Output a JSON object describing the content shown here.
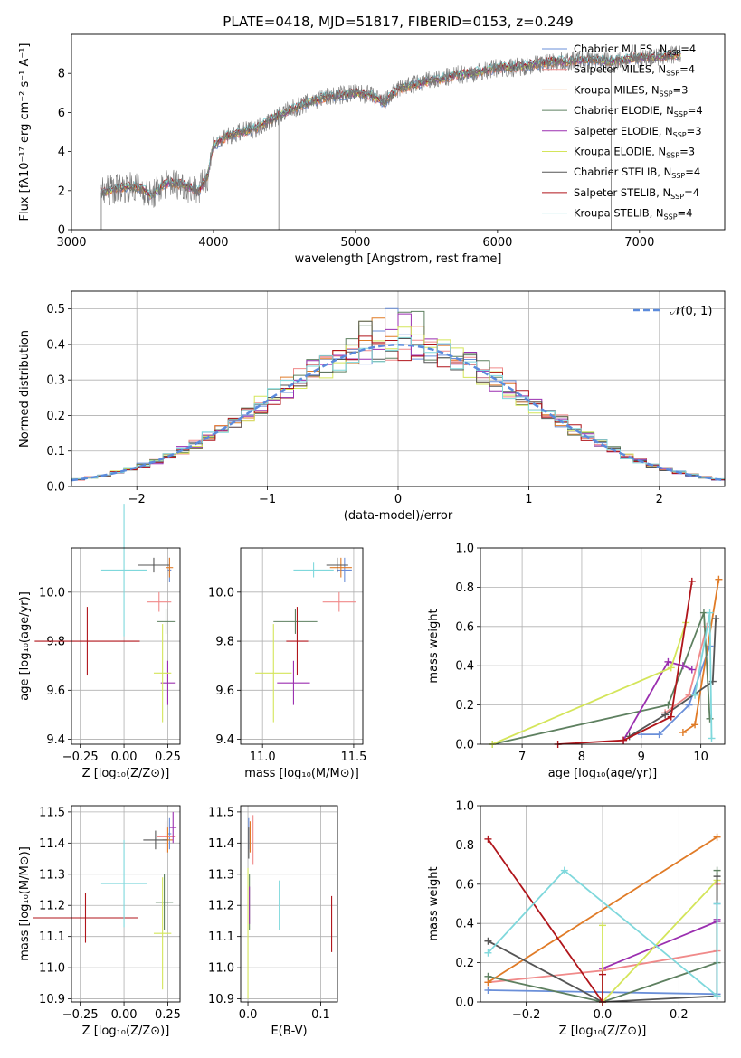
{
  "colors": {
    "chabrier_miles": "#6a8fd9",
    "salpeter_miles": "#f08a8a",
    "kroupa_miles": "#e07b27",
    "chabrier_elodie": "#5e8060",
    "salpeter_elodie": "#9b2fb0",
    "kroupa_elodie": "#d4e55a",
    "chabrier_stelib": "#555555",
    "salpeter_stelib": "#b0151b",
    "kroupa_stelib": "#7fd8dc",
    "gaussian": "#5b8bdc",
    "grid": "#b0b0b0"
  },
  "chart_data": [
    {
      "id": "spectrum",
      "type": "line",
      "title": "PLATE=0418, MJD=51817, FIBERID=0153, z=0.249",
      "xlabel": "wavelength [Angstrom, rest frame]",
      "ylabel_html": "Flux [fλ10⁻¹⁷ erg cm⁻² s⁻¹ A⁻¹]",
      "xlim": [
        3000,
        7600
      ],
      "ylim": [
        0,
        10
      ],
      "xticks": [
        3000,
        4000,
        5000,
        6000,
        7000
      ],
      "yticks": [
        0,
        2,
        4,
        6,
        8
      ],
      "grid": false,
      "legend": [
        {
          "label": "Chabrier MILES, N",
          "sub": "SSP",
          "tail": "=4",
          "color": "chabrier_miles"
        },
        {
          "label": "Salpeter MILES, N",
          "sub": "SSP",
          "tail": "=4",
          "color": "salpeter_miles"
        },
        {
          "label": "Kroupa MILES, N",
          "sub": "SSP",
          "tail": "=3",
          "color": "kroupa_miles"
        },
        {
          "label": "Chabrier ELODIE, N",
          "sub": "SSP",
          "tail": "=4",
          "color": "chabrier_elodie"
        },
        {
          "label": "Salpeter ELODIE, N",
          "sub": "SSP",
          "tail": "=3",
          "color": "salpeter_elodie"
        },
        {
          "label": "Kroupa ELODIE, N",
          "sub": "SSP",
          "tail": "=3",
          "color": "kroupa_elodie"
        },
        {
          "label": "Chabrier STELIB, N",
          "sub": "SSP",
          "tail": "=4",
          "color": "chabrier_stelib"
        },
        {
          "label": "Salpeter STELIB, N",
          "sub": "SSP",
          "tail": "=4",
          "color": "salpeter_stelib"
        },
        {
          "label": "Kroupa STELIB, N",
          "sub": "SSP",
          "tail": "=4",
          "color": "kroupa_stelib"
        }
      ],
      "continuum": {
        "x": [
          3210,
          3300,
          3400,
          3500,
          3560,
          3650,
          3700,
          3780,
          3850,
          3900,
          3960,
          4000,
          4100,
          4200,
          4300,
          4400,
          4500,
          4600,
          4700,
          4800,
          4900,
          5000,
          5100,
          5200,
          5300,
          5400,
          5500,
          5600,
          5700,
          5800,
          5900,
          6000,
          6100,
          6200,
          6300,
          6400,
          6500,
          6600,
          6700,
          6800,
          6900,
          7000,
          7100,
          7200,
          7300
        ],
        "y": [
          1.9,
          2.1,
          2.2,
          2.1,
          1.7,
          2.3,
          2.4,
          2.3,
          2.1,
          2.0,
          2.8,
          4.3,
          4.8,
          5.0,
          5.2,
          5.6,
          6.0,
          6.3,
          6.6,
          6.8,
          6.9,
          7.0,
          6.9,
          6.5,
          7.2,
          7.4,
          7.6,
          7.7,
          7.9,
          8.0,
          8.1,
          8.3,
          8.3,
          8.4,
          8.5,
          8.6,
          8.6,
          8.7,
          8.7,
          8.6,
          8.7,
          8.8,
          8.8,
          8.9,
          9.0
        ]
      }
    },
    {
      "id": "residuals",
      "type": "histogram",
      "xlabel": "(data-model)/error",
      "ylabel": "Normed distribution",
      "xlim": [
        -2.5,
        2.5
      ],
      "ylim": [
        0,
        0.55
      ],
      "xticks": [
        -2,
        -1,
        0,
        1,
        2
      ],
      "yticks": [
        0.0,
        0.1,
        0.2,
        0.3,
        0.4,
        0.5
      ],
      "grid": true,
      "bin_width": 0.1,
      "gaussian_label": "𝒩(0, 1)",
      "legend_position": "top-right"
    },
    {
      "id": "age_vs_Z",
      "type": "errorbar",
      "xlabel": "Z [log₁₀(Z/Z⊙)]",
      "ylabel": "age  [log₁₀(age/yr)]",
      "xlim": [
        -0.3,
        0.32
      ],
      "ylim": [
        9.38,
        10.18
      ],
      "xticks": [
        -0.25,
        0.0,
        0.25
      ],
      "xticklabels": [
        "−0.25",
        "0.00",
        "0.25"
      ],
      "yticks": [
        9.4,
        9.6,
        9.8,
        10.0
      ],
      "grid": true,
      "points": [
        {
          "color": "chabrier_miles",
          "x": 0.26,
          "xerr": 0.01,
          "y": 10.09,
          "yerr": 0.05
        },
        {
          "color": "salpeter_miles",
          "x": 0.2,
          "xerr": 0.07,
          "y": 9.96,
          "yerr": 0.04
        },
        {
          "color": "kroupa_miles",
          "x": 0.26,
          "xerr": 0.02,
          "y": 10.1,
          "yerr": 0.04
        },
        {
          "color": "chabrier_elodie",
          "x": 0.24,
          "xerr": 0.05,
          "y": 9.88,
          "yerr": 0.05
        },
        {
          "color": "salpeter_elodie",
          "x": 0.25,
          "xerr": 0.04,
          "y": 9.63,
          "yerr": 0.09
        },
        {
          "color": "kroupa_elodie",
          "x": 0.22,
          "xerr": 0.05,
          "y": 9.67,
          "yerr": 0.2
        },
        {
          "color": "chabrier_stelib",
          "x": 0.17,
          "xerr": 0.09,
          "y": 10.11,
          "yerr": 0.03
        },
        {
          "color": "salpeter_stelib",
          "x": -0.21,
          "xerr": 0.3,
          "y": 9.8,
          "yerr": 0.14
        },
        {
          "color": "kroupa_stelib",
          "x": 0.0,
          "xerr": 0.13,
          "y": 10.09,
          "yerr": 0.27
        }
      ]
    },
    {
      "id": "age_vs_mass",
      "type": "errorbar",
      "xlabel": "mass [log₁₀(M/M⊙)]",
      "ylabel": "",
      "xlim": [
        10.88,
        11.55
      ],
      "ylim": [
        9.38,
        10.18
      ],
      "xticks": [
        11.0,
        11.5
      ],
      "xticklabels": [
        "11.0",
        "11.5"
      ],
      "yticks": [
        9.4,
        9.6,
        9.8,
        10.0
      ],
      "grid": true,
      "points": [
        {
          "color": "chabrier_miles",
          "x": 11.45,
          "xerr": 0.04,
          "y": 10.09,
          "yerr": 0.05
        },
        {
          "color": "salpeter_miles",
          "x": 11.42,
          "xerr": 0.09,
          "y": 9.96,
          "yerr": 0.04
        },
        {
          "color": "kroupa_miles",
          "x": 11.43,
          "xerr": 0.06,
          "y": 10.1,
          "yerr": 0.04
        },
        {
          "color": "chabrier_elodie",
          "x": 11.18,
          "xerr": 0.12,
          "y": 9.88,
          "yerr": 0.05
        },
        {
          "color": "salpeter_elodie",
          "x": 11.17,
          "xerr": 0.09,
          "y": 9.63,
          "yerr": 0.09
        },
        {
          "color": "kroupa_elodie",
          "x": 11.06,
          "xerr": 0.1,
          "y": 9.67,
          "yerr": 0.2
        },
        {
          "color": "chabrier_stelib",
          "x": 11.41,
          "xerr": 0.06,
          "y": 10.11,
          "yerr": 0.03
        },
        {
          "color": "salpeter_stelib",
          "x": 11.19,
          "xerr": 0.06,
          "y": 9.8,
          "yerr": 0.14
        },
        {
          "color": "kroupa_stelib",
          "x": 11.28,
          "xerr": 0.11,
          "y": 10.09,
          "yerr": 0.03
        }
      ]
    },
    {
      "id": "weight_vs_age",
      "type": "line",
      "xlabel": "age  [log₁₀(age/yr)]",
      "ylabel": "mass weight",
      "xlim": [
        6.3,
        10.4
      ],
      "ylim": [
        0,
        1.0
      ],
      "xticks": [
        7,
        8,
        9,
        10
      ],
      "yticks": [
        0.0,
        0.2,
        0.4,
        0.6,
        0.8,
        1.0
      ],
      "grid": true,
      "series": [
        {
          "color": "chabrier_miles",
          "x": [
            9.0,
            9.3,
            9.8,
            10.15
          ],
          "y": [
            0.05,
            0.05,
            0.2,
            0.5
          ]
        },
        {
          "color": "salpeter_miles",
          "x": [
            9.4,
            9.8,
            10.1
          ],
          "y": [
            0.16,
            0.25,
            0.6
          ]
        },
        {
          "color": "kroupa_miles",
          "x": [
            9.7,
            9.9,
            10.3
          ],
          "y": [
            0.06,
            0.1,
            0.84
          ]
        },
        {
          "color": "chabrier_elodie",
          "x": [
            6.5,
            9.45,
            10.05,
            10.15
          ],
          "y": [
            0.0,
            0.2,
            0.67,
            0.13
          ]
        },
        {
          "color": "salpeter_elodie",
          "x": [
            8.7,
            9.45,
            9.7,
            9.85
          ],
          "y": [
            0.02,
            0.42,
            0.4,
            0.38
          ]
        },
        {
          "color": "kroupa_elodie",
          "x": [
            6.5,
            9.5,
            9.75
          ],
          "y": [
            0.0,
            0.39,
            0.62
          ]
        },
        {
          "color": "chabrier_stelib",
          "x": [
            8.8,
            9.4,
            10.2,
            10.25
          ],
          "y": [
            0.04,
            0.15,
            0.32,
            0.64
          ]
        },
        {
          "color": "salpeter_stelib",
          "x": [
            7.6,
            8.7,
            9.5,
            9.85
          ],
          "y": [
            0.0,
            0.02,
            0.14,
            0.83
          ]
        },
        {
          "color": "kroupa_stelib",
          "x": [
            9.9,
            10.15,
            10.18
          ],
          "y": [
            0.25,
            0.67,
            0.03
          ]
        }
      ]
    },
    {
      "id": "mass_vs_Z",
      "type": "errorbar",
      "xlabel": "Z [log₁₀(Z/Z⊙)]",
      "ylabel": "mass [log₁₀(M/M⊙)]",
      "xlim": [
        -0.3,
        0.32
      ],
      "ylim": [
        10.89,
        11.52
      ],
      "xticks": [
        -0.25,
        0.0,
        0.25
      ],
      "xticklabels": [
        "−0.25",
        "0.00",
        "0.25"
      ],
      "yticks": [
        10.9,
        11.0,
        11.1,
        11.2,
        11.3,
        11.4,
        11.5
      ],
      "grid": true,
      "points": [
        {
          "color": "chabrier_miles",
          "x": 0.26,
          "xerr": 0.01,
          "y": 11.43,
          "yerr": 0.05
        },
        {
          "color": "salpeter_miles",
          "x": 0.24,
          "xerr": 0.05,
          "y": 11.42,
          "yerr": 0.05
        },
        {
          "color": "kroupa_miles",
          "x": 0.25,
          "xerr": 0.03,
          "y": 11.41,
          "yerr": 0.04
        },
        {
          "color": "chabrier_elodie",
          "x": 0.23,
          "xerr": 0.05,
          "y": 11.21,
          "yerr": 0.09
        },
        {
          "color": "salpeter_elodie",
          "x": 0.28,
          "xerr": 0.02,
          "y": 11.45,
          "yerr": 0.05
        },
        {
          "color": "kroupa_elodie",
          "x": 0.22,
          "xerr": 0.05,
          "y": 11.11,
          "yerr": 0.18
        },
        {
          "color": "chabrier_stelib",
          "x": 0.18,
          "xerr": 0.07,
          "y": 11.41,
          "yerr": 0.03
        },
        {
          "color": "salpeter_stelib",
          "x": -0.22,
          "xerr": 0.3,
          "y": 11.16,
          "yerr": 0.08
        },
        {
          "color": "kroupa_stelib",
          "x": 0.0,
          "xerr": 0.13,
          "y": 11.27,
          "yerr": 0.14
        }
      ]
    },
    {
      "id": "mass_vs_ebv",
      "type": "errorbar",
      "xlabel": "E(B-V)",
      "ylabel": "",
      "xlim": [
        -0.01,
        0.123
      ],
      "ylim": [
        10.89,
        11.52
      ],
      "xticks": [
        0.0,
        0.1
      ],
      "xticklabels": [
        "0.0",
        "0.1"
      ],
      "yticks": [
        10.9,
        11.0,
        11.1,
        11.2,
        11.3,
        11.4,
        11.5
      ],
      "grid": true,
      "points": [
        {
          "color": "chabrier_miles",
          "x": 0.001,
          "xerr": 0.0,
          "y": 11.43,
          "yerr": 0.05
        },
        {
          "color": "salpeter_miles",
          "x": 0.007,
          "xerr": 0.0,
          "y": 11.41,
          "yerr": 0.08
        },
        {
          "color": "kroupa_miles",
          "x": 0.003,
          "xerr": 0.0,
          "y": 11.42,
          "yerr": 0.05
        },
        {
          "color": "chabrier_elodie",
          "x": 0.002,
          "xerr": 0.0,
          "y": 11.21,
          "yerr": 0.09
        },
        {
          "color": "salpeter_elodie",
          "x": 0.002,
          "xerr": 0.0,
          "y": 11.2,
          "yerr": 0.06
        },
        {
          "color": "kroupa_elodie",
          "x": 0.0,
          "xerr": 0.0,
          "y": 11.11,
          "yerr": 0.21
        },
        {
          "color": "chabrier_stelib",
          "x": 0.001,
          "xerr": 0.0,
          "y": 11.4,
          "yerr": 0.05
        },
        {
          "color": "salpeter_stelib",
          "x": 0.115,
          "xerr": 0.0,
          "y": 11.14,
          "yerr": 0.09
        },
        {
          "color": "kroupa_stelib",
          "x": 0.043,
          "xerr": 0.0,
          "y": 11.2,
          "yerr": 0.08
        }
      ]
    },
    {
      "id": "weight_vs_Z",
      "type": "line",
      "xlabel": "Z [log₁₀(Z/Z⊙)]",
      "ylabel": "mass weight",
      "xlim": [
        -0.32,
        0.32
      ],
      "ylim": [
        0,
        1.0
      ],
      "xticks": [
        -0.2,
        0.0,
        0.2
      ],
      "xticklabels": [
        "−0.2",
        "0.0",
        "0.2"
      ],
      "yticks": [
        0.0,
        0.2,
        0.4,
        0.6,
        0.8,
        1.0
      ],
      "grid": true,
      "series": [
        {
          "color": "chabrier_miles",
          "x": [
            -0.3,
            0.3,
            0.3
          ],
          "y": [
            0.06,
            0.04,
            0.5
          ]
        },
        {
          "color": "salpeter_miles",
          "x": [
            -0.3,
            0.0,
            0.3,
            0.3
          ],
          "y": [
            0.1,
            0.16,
            0.26,
            0.6
          ]
        },
        {
          "color": "kroupa_miles",
          "x": [
            -0.3,
            0.3
          ],
          "y": [
            0.1,
            0.84
          ]
        },
        {
          "color": "chabrier_elodie",
          "x": [
            -0.3,
            0.0,
            0.3,
            0.3
          ],
          "y": [
            0.13,
            0.0,
            0.2,
            0.67
          ]
        },
        {
          "color": "salpeter_elodie",
          "x": [
            0.0,
            0.3,
            0.3
          ],
          "y": [
            0.17,
            0.41,
            0.42
          ]
        },
        {
          "color": "kroupa_elodie",
          "x": [
            0.0,
            0.0,
            0.3
          ],
          "y": [
            0.39,
            0.0,
            0.62
          ]
        },
        {
          "color": "chabrier_stelib",
          "x": [
            -0.3,
            0.0,
            0.3,
            0.3
          ],
          "y": [
            0.31,
            0.0,
            0.03,
            0.64
          ]
        },
        {
          "color": "salpeter_stelib",
          "x": [
            -0.3,
            0.0,
            0.0
          ],
          "y": [
            0.83,
            0.0,
            0.14
          ]
        },
        {
          "color": "kroupa_stelib",
          "x": [
            -0.3,
            -0.1,
            0.3,
            0.3
          ],
          "y": [
            0.25,
            0.67,
            0.03,
            0.5
          ]
        }
      ]
    }
  ]
}
